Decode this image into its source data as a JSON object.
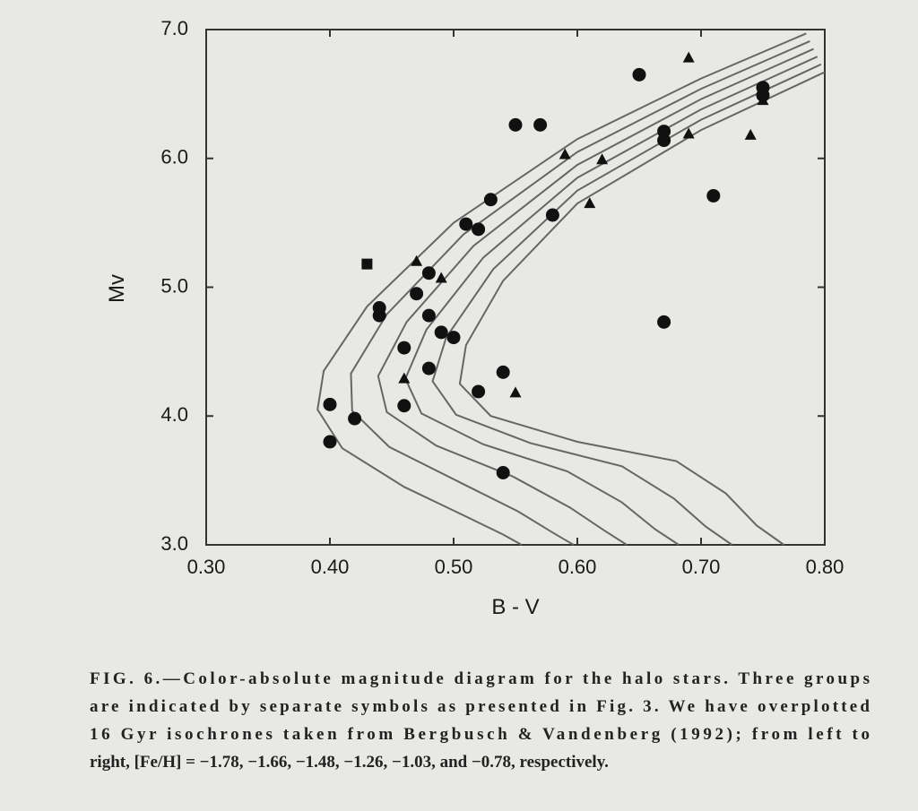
{
  "chart_data": {
    "type": "scatter",
    "xlabel": "B - V",
    "ylabel": "Mv",
    "xlim": [
      0.3,
      0.8
    ],
    "ylim": [
      3.0,
      7.0
    ],
    "xticks": [
      {
        "value": 0.3,
        "label": "0.30"
      },
      {
        "value": 0.4,
        "label": "0.40"
      },
      {
        "value": 0.5,
        "label": "0.50"
      },
      {
        "value": 0.6,
        "label": "0.60"
      },
      {
        "value": 0.7,
        "label": "0.70"
      },
      {
        "value": 0.8,
        "label": "0.80"
      }
    ],
    "yticks": [
      {
        "value": 3,
        "label": "3.0"
      },
      {
        "value": 4,
        "label": "4.0"
      },
      {
        "value": 5,
        "label": "5.0"
      },
      {
        "value": 6,
        "label": "6.0"
      },
      {
        "value": 7,
        "label": "7.0"
      }
    ],
    "series": [
      {
        "marker": "circle",
        "color": "#111111",
        "x": [
          0.4,
          0.4,
          0.42,
          0.44,
          0.44,
          0.46,
          0.46,
          0.48,
          0.48,
          0.47,
          0.48,
          0.49,
          0.5,
          0.51,
          0.52,
          0.53,
          0.52,
          0.54,
          0.54,
          0.55,
          0.57,
          0.58,
          0.65,
          0.67,
          0.67,
          0.71,
          0.67,
          0.75,
          0.75
        ],
        "y": [
          3.8,
          4.09,
          3.98,
          4.84,
          4.78,
          4.53,
          4.08,
          4.37,
          5.11,
          4.95,
          4.78,
          4.65,
          4.61,
          5.49,
          5.45,
          5.68,
          4.19,
          4.34,
          3.56,
          6.26,
          6.26,
          5.56,
          6.65,
          6.21,
          6.14,
          5.71,
          4.73,
          6.55,
          6.49
        ]
      },
      {
        "marker": "triangle",
        "color": "#111111",
        "x": [
          0.47,
          0.49,
          0.46,
          0.55,
          0.59,
          0.62,
          0.61,
          0.69,
          0.69,
          0.74,
          0.75
        ],
        "y": [
          5.2,
          5.07,
          4.29,
          4.18,
          6.03,
          5.99,
          5.65,
          6.78,
          6.19,
          6.18,
          6.45
        ]
      },
      {
        "marker": "square",
        "color": "#111111",
        "x": [
          0.43
        ],
        "y": [
          5.18
        ]
      }
    ],
    "isochrones": [
      {
        "color": "#666666",
        "x": [
          0.785,
          0.7,
          0.6,
          0.5,
          0.43,
          0.395,
          0.39,
          0.41,
          0.46,
          0.51,
          0.54,
          0.555
        ],
        "y": [
          6.97,
          6.62,
          6.15,
          5.5,
          4.85,
          4.35,
          4.05,
          3.75,
          3.45,
          3.22,
          3.08,
          3.0
        ]
      },
      {
        "color": "#666666",
        "x": [
          0.788,
          0.7,
          0.6,
          0.508,
          0.446,
          0.417,
          0.418,
          0.448,
          0.504,
          0.552,
          0.581,
          0.597
        ],
        "y": [
          6.91,
          6.54,
          6.05,
          5.41,
          4.79,
          4.33,
          4.04,
          3.76,
          3.49,
          3.26,
          3.09,
          3.0
        ]
      },
      {
        "color": "#666666",
        "x": [
          0.791,
          0.7,
          0.6,
          0.516,
          0.462,
          0.439,
          0.446,
          0.486,
          0.548,
          0.594,
          0.622,
          0.64
        ],
        "y": [
          6.85,
          6.46,
          5.95,
          5.32,
          4.73,
          4.31,
          4.03,
          3.77,
          3.53,
          3.29,
          3.11,
          3.0
        ]
      },
      {
        "color": "#666666",
        "x": [
          0.794,
          0.7,
          0.6,
          0.524,
          0.478,
          0.461,
          0.474,
          0.524,
          0.592,
          0.636,
          0.663,
          0.682
        ],
        "y": [
          6.79,
          6.38,
          5.85,
          5.23,
          4.67,
          4.29,
          4.02,
          3.78,
          3.57,
          3.33,
          3.12,
          3.0
        ]
      },
      {
        "color": "#666666",
        "x": [
          0.797,
          0.7,
          0.6,
          0.532,
          0.494,
          0.483,
          0.502,
          0.562,
          0.636,
          0.678,
          0.704,
          0.725
        ],
        "y": [
          6.73,
          6.3,
          5.75,
          5.14,
          4.61,
          4.27,
          4.01,
          3.79,
          3.61,
          3.36,
          3.14,
          3.0
        ]
      },
      {
        "color": "#666666",
        "x": [
          0.8,
          0.7,
          0.6,
          0.54,
          0.51,
          0.505,
          0.53,
          0.6,
          0.68,
          0.72,
          0.745,
          0.767
        ],
        "y": [
          6.67,
          6.22,
          5.65,
          5.05,
          4.55,
          4.25,
          4.0,
          3.8,
          3.65,
          3.4,
          3.15,
          3.0
        ]
      }
    ],
    "caption": [
      "FIG. 6.—Color-absolute magnitude diagram for the halo stars. Three groups",
      "are indicated by separate symbols as presented in Fig. 3. We have overplotted",
      "16 Gyr isochrones taken from Bergbusch & Vandenberg (1992); from left to",
      "right, [Fe/H] = −1.78, −1.66, −1.48, −1.26, −1.03, and −0.78, respectively."
    ]
  }
}
